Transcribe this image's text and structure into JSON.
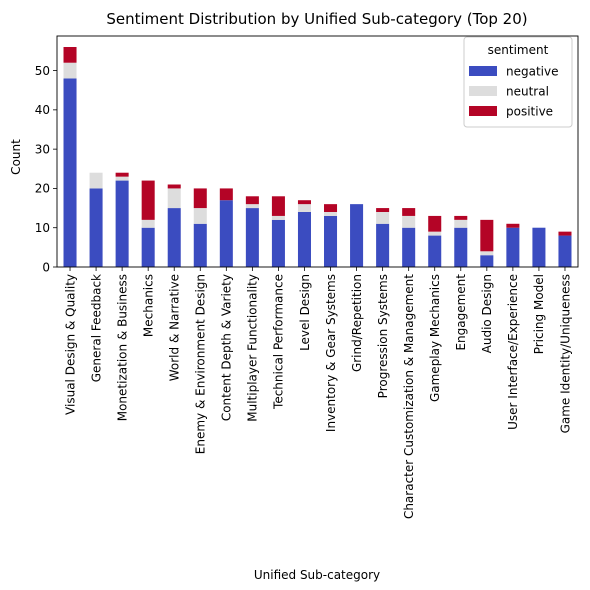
{
  "chart_data": {
    "type": "bar",
    "stacked": true,
    "title": "Sentiment Distribution by Unified Sub-category (Top 20)",
    "xlabel": "Unified Sub-category",
    "ylabel": "Count",
    "ylim": [
      0,
      58.8
    ],
    "yticks": [
      0,
      10,
      20,
      30,
      40,
      50
    ],
    "grid": false,
    "legend": {
      "title": "sentiment",
      "placement": "top-right"
    },
    "categories": [
      "Visual Design & Quality",
      "General Feedback",
      "Monetization & Business",
      "Mechanics",
      "World & Narrative",
      "Enemy & Environment Design",
      "Content Depth & Variety",
      "Multiplayer Functionality",
      "Technical Performance",
      "Level Design",
      "Inventory & Gear Systems",
      "Grind/Repetition",
      "Progression Systems",
      "Character Customization & Management",
      "Gameplay Mechanics",
      "Engagement",
      "Audio Design",
      "User Interface/Experience",
      "Pricing Model",
      "Game Identity/Uniqueness"
    ],
    "series": [
      {
        "name": "negative",
        "color": "#3b4cc0",
        "values": [
          48,
          20,
          22,
          10,
          15,
          11,
          17,
          15,
          12,
          14,
          13,
          16,
          11,
          10,
          8,
          10,
          3,
          10,
          10,
          8
        ]
      },
      {
        "name": "neutral",
        "color": "#dddddd",
        "values": [
          4,
          4,
          1,
          2,
          5,
          4,
          0,
          1,
          1,
          2,
          1,
          0,
          3,
          3,
          1,
          2,
          1,
          0,
          0,
          0
        ]
      },
      {
        "name": "positive",
        "color": "#b40426",
        "values": [
          4,
          0,
          1,
          10,
          1,
          5,
          3,
          2,
          5,
          1,
          2,
          0,
          1,
          2,
          4,
          1,
          8,
          1,
          0,
          1
        ]
      }
    ]
  }
}
